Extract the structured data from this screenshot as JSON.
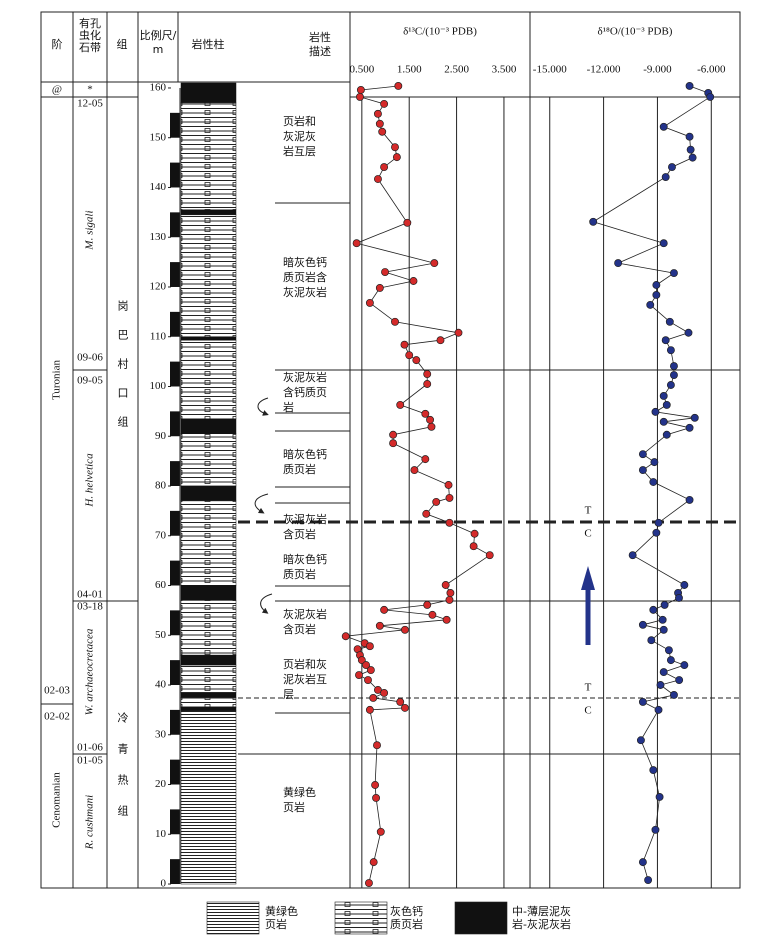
{
  "header": {
    "stage": "阶",
    "zone": [
      "有孔",
      "虫化",
      "石带"
    ],
    "formation": "组",
    "scale": [
      "比例尺/",
      "m"
    ],
    "lithology": "岩性柱",
    "description": [
      "岩性",
      "描述"
    ]
  },
  "stages": [
    "@",
    "Turonian",
    "Cenomanian"
  ],
  "zone_marks": [
    "*",
    "12-05",
    "09-06",
    "09-05",
    "04-01",
    "03-18",
    "02-03",
    "02-02",
    "01-06",
    "01-05"
  ],
  "zones": [
    "M. sigali",
    "H. helvetica",
    "W. archaeocretacea",
    "R. cushmani"
  ],
  "formations": [
    "岗巴村口组",
    "冷青热组"
  ],
  "descriptions": [
    [
      "页岩和",
      "灰泥灰",
      "岩互层"
    ],
    [
      "暗灰色钙",
      "质页岩含",
      "灰泥灰岩"
    ],
    [
      "灰泥灰岩",
      "含钙质页",
      "岩"
    ],
    [
      "暗灰色钙",
      "质页岩"
    ],
    [
      "灰泥灰岩",
      "含页岩"
    ],
    [
      "暗灰色钙",
      "质页岩"
    ],
    [
      "灰泥灰岩",
      "含页岩"
    ],
    [
      "页岩和灰",
      "泥灰岩互",
      "层"
    ],
    [
      "黄绿色",
      "页岩"
    ]
  ],
  "boundary_labels": [
    "T",
    "C",
    "T",
    "C"
  ],
  "lithology": [
    {
      "top": 161,
      "bottom": 157,
      "type": "lime"
    },
    {
      "top": 157,
      "bottom": 135.5,
      "type": "calc"
    },
    {
      "top": 135.5,
      "bottom": 134.5,
      "type": "lime"
    },
    {
      "top": 134.5,
      "bottom": 110,
      "type": "calc"
    },
    {
      "top": 110,
      "bottom": 109.3,
      "type": "lime"
    },
    {
      "top": 109.3,
      "bottom": 93.5,
      "type": "calc"
    },
    {
      "top": 93.5,
      "bottom": 90.5,
      "type": "lime"
    },
    {
      "top": 90.5,
      "bottom": 80,
      "type": "calc"
    },
    {
      "top": 80,
      "bottom": 77,
      "type": "lime"
    },
    {
      "top": 77,
      "bottom": 60,
      "type": "calc"
    },
    {
      "top": 60,
      "bottom": 57,
      "type": "lime"
    },
    {
      "top": 57,
      "bottom": 46,
      "type": "calc"
    },
    {
      "top": 46,
      "bottom": 44,
      "type": "lime"
    },
    {
      "top": 44,
      "bottom": 38.5,
      "type": "calc"
    },
    {
      "top": 38.5,
      "bottom": 37.5,
      "type": "lime"
    },
    {
      "top": 37.5,
      "bottom": 35.5,
      "type": "calc"
    },
    {
      "top": 35.5,
      "bottom": 34.8,
      "type": "lime"
    },
    {
      "top": 34.8,
      "bottom": 0,
      "type": "shale"
    }
  ],
  "legend": [
    {
      "type": "shale",
      "label": [
        "黄绿色",
        "页岩"
      ]
    },
    {
      "type": "calc",
      "label": [
        "灰色钙",
        "质页岩"
      ]
    },
    {
      "type": "lime",
      "label": [
        "中-薄层泥灰",
        "岩-灰泥灰岩"
      ]
    }
  ],
  "chart_data": [
    {
      "type": "line",
      "title": "δ¹³C/(10⁻³ PDB)",
      "xlim": [
        0.25,
        4.05
      ],
      "xticks": [
        {
          "value": 0.5,
          "label": "0.500"
        },
        {
          "value": 1.5,
          "label": "1.500"
        },
        {
          "value": 2.5,
          "label": "2.500"
        },
        {
          "value": 3.5,
          "label": "3.500"
        }
      ],
      "ylim": [
        -0.8,
        161.2
      ],
      "yticks": [
        0,
        10,
        20,
        30,
        40,
        50,
        60,
        70,
        80,
        90,
        100,
        110,
        120,
        130,
        140,
        150,
        160
      ],
      "grid": true,
      "series": [
        {
          "color": "#d42a2a",
          "x": [
            1.27,
            0.48,
            0.46,
            0.97,
            0.84,
            0.88,
            0.93,
            1.2,
            1.24,
            0.97,
            0.84,
            1.46,
            0.39,
            2.03,
            0.99,
            1.59,
            0.88,
            0.67,
            1.2,
            2.54,
            2.16,
            1.4,
            1.5,
            1.65,
            1.88,
            1.88,
            1.31,
            1.84,
            1.94,
            1.97,
            1.16,
            1.16,
            1.84,
            1.61,
            2.33,
            2.35,
            2.07,
            1.86,
            2.35,
            2.88,
            2.86,
            3.2,
            2.27,
            2.37,
            2.35,
            1.88,
            0.97,
            1.99,
            2.29,
            0.88,
            1.41,
            0.16,
            0.56,
            0.67,
            0.41,
            0.46,
            0.5,
            0.59,
            0.69,
            0.44,
            0.63,
            0.84,
            0.97,
            0.74,
            1.31,
            1.41,
            0.67,
            0.82,
            0.78,
            0.8,
            0.9,
            0.75,
            0.65
          ],
          "values": [
            160.4,
            159.6,
            158.2,
            156.8,
            154.8,
            152.8,
            151.2,
            148.1,
            146.1,
            144.1,
            141.7,
            132.9,
            128.8,
            124.8,
            123.0,
            121.2,
            119.8,
            116.8,
            113.0,
            110.8,
            109.3,
            108.4,
            106.3,
            105.3,
            102.5,
            100.5,
            96.3,
            94.5,
            93.3,
            91.9,
            90.3,
            88.6,
            85.4,
            83.2,
            80.2,
            77.6,
            76.8,
            74.4,
            72.6,
            70.4,
            67.9,
            66.1,
            60.1,
            58.5,
            57.1,
            56.1,
            55.1,
            54.1,
            53.1,
            51.9,
            51.1,
            49.8,
            48.4,
            47.8,
            47.2,
            46.0,
            45.0,
            44.0,
            43.0,
            42.0,
            41.0,
            39.0,
            38.4,
            37.4,
            36.6,
            35.4,
            35.0,
            27.9,
            19.9,
            17.3,
            10.5,
            4.4,
            0.2
          ]
        }
      ]
    },
    {
      "type": "line",
      "title": "δ¹⁸O/(10⁻³ PDB)",
      "xlim": [
        -16.1,
        -4.4
      ],
      "xticks": [
        {
          "value": -15,
          "label": "-15.000"
        },
        {
          "value": -12,
          "label": "-12.000"
        },
        {
          "value": -9,
          "label": "-9.000"
        },
        {
          "value": -6,
          "label": "-6.000"
        }
      ],
      "ylim": [
        -0.8,
        161.2
      ],
      "grid": true,
      "series": [
        {
          "color": "#23338a",
          "x": [
            -7.21,
            -6.17,
            -6.06,
            -8.65,
            -7.21,
            -7.15,
            -7.04,
            -8.19,
            -8.54,
            -12.58,
            -8.65,
            -11.19,
            -8.08,
            -9.06,
            -9.06,
            -9.4,
            -8.31,
            -7.27,
            -8.54,
            -8.25,
            -8.08,
            -8.08,
            -8.25,
            -8.65,
            -8.48,
            -9.11,
            -6.92,
            -8.65,
            -7.21,
            -8.48,
            -9.81,
            -9.17,
            -9.81,
            -9.23,
            -7.21,
            -8.94,
            -9.06,
            -10.38,
            -7.5,
            -7.85,
            -7.8,
            -8.6,
            -9.23,
            -8.71,
            -9.81,
            -8.65,
            -9.34,
            -8.36,
            -8.25,
            -7.5,
            -8.65,
            -7.79,
            -8.83,
            -8.08,
            -9.81,
            -8.94,
            -9.92,
            -9.23,
            -8.88,
            -9.11,
            -9.81,
            -9.52
          ],
          "values": [
            160.4,
            159,
            158.2,
            152.2,
            150.2,
            147.6,
            146,
            144.1,
            142.1,
            133.1,
            128.8,
            124.8,
            122.8,
            120.4,
            118.4,
            116.4,
            113,
            110.8,
            109.3,
            107.3,
            104.1,
            102.3,
            100.3,
            98.1,
            96.3,
            94.9,
            93.7,
            92.9,
            91.7,
            90.3,
            86.4,
            84.8,
            83.2,
            80.8,
            77.2,
            72.6,
            70.6,
            66.1,
            60.1,
            58.5,
            57.5,
            56.1,
            55.1,
            53.1,
            52.1,
            51.1,
            49,
            47,
            45,
            44,
            42.6,
            41,
            40,
            38,
            36.6,
            35,
            28.9,
            22.9,
            17.5,
            10.9,
            4.4,
            0.8
          ]
        }
      ]
    }
  ]
}
